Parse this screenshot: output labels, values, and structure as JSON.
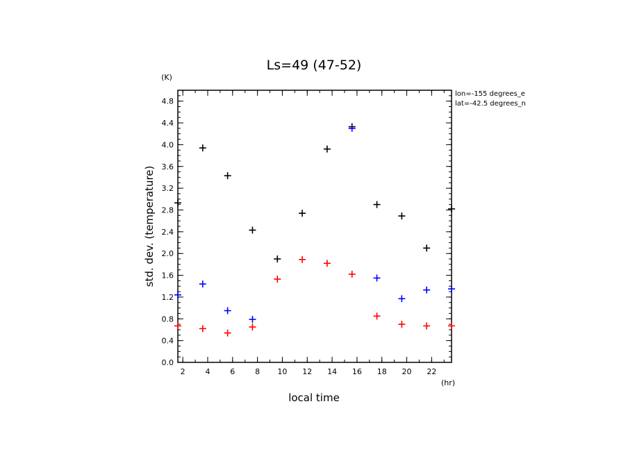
{
  "chart_data": {
    "type": "scatter",
    "title": "Ls=49 (47-52)",
    "xlabel": "local time",
    "ylabel": "std. dev. (temperature)",
    "x_unit": "(hr)",
    "y_unit": "(K)",
    "xlim": [
      1.6,
      23.6
    ],
    "ylim": [
      0.0,
      5.0
    ],
    "xticks": [
      "2",
      "4",
      "6",
      "8",
      "10",
      "12",
      "14",
      "16",
      "18",
      "20",
      "22"
    ],
    "yticks": [
      "0.0",
      "0.4",
      "0.8",
      "1.2",
      "1.6",
      "2.0",
      "2.4",
      "2.8",
      "3.2",
      "3.6",
      "4.0",
      "4.4",
      "4.8"
    ],
    "annotations": [
      "lon=-155 degrees_e",
      "lat=-42.5 degrees_n"
    ],
    "grid": false,
    "series": [
      {
        "color": "#000000",
        "x": [
          1.6,
          3.6,
          5.6,
          7.6,
          9.6,
          11.6,
          13.6,
          15.6,
          17.6,
          19.6,
          21.6,
          23.6
        ],
        "values": [
          2.93,
          3.94,
          3.43,
          2.43,
          1.9,
          2.74,
          3.92,
          4.33,
          2.9,
          2.69,
          2.1,
          2.82
        ]
      },
      {
        "color": "#0000ff",
        "x": [
          1.6,
          3.6,
          5.6,
          7.6,
          9.6,
          11.6,
          13.6,
          15.6,
          17.6,
          19.6,
          21.6,
          23.6
        ],
        "values": [
          1.24,
          1.44,
          0.95,
          0.79,
          null,
          null,
          null,
          4.3,
          1.55,
          1.17,
          1.33,
          1.35
        ]
      },
      {
        "color": "#ff0000",
        "x": [
          1.6,
          3.6,
          5.6,
          7.6,
          9.6,
          11.6,
          13.6,
          15.6,
          17.6,
          19.6,
          21.6,
          23.6
        ],
        "values": [
          0.67,
          0.62,
          0.54,
          0.65,
          1.53,
          1.89,
          1.82,
          1.62,
          0.85,
          0.7,
          0.67,
          0.67
        ]
      }
    ]
  }
}
